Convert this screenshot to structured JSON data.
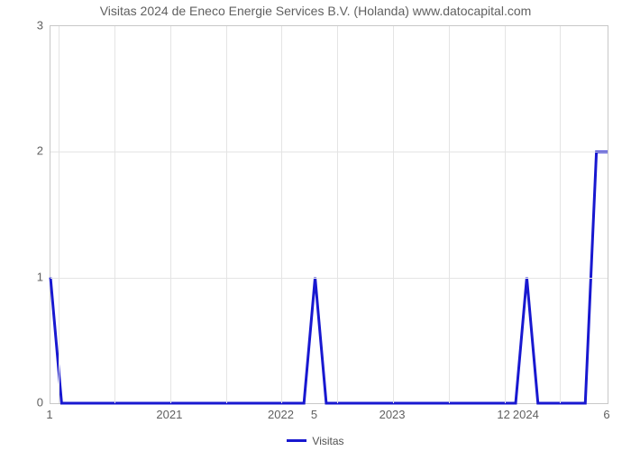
{
  "chart": {
    "type": "line",
    "title": "Visitas 2024 de Eneco Energie Services B.V. (Holanda) www.datocapital.com",
    "title_fontsize": 14,
    "title_color": "#606060",
    "background_color": "#ffffff",
    "plot_border_color": "#c8c8c8",
    "grid_color": "#e4e4e4",
    "axis_label_color": "#606060",
    "axis_label_fontsize": 13,
    "series": {
      "name": "Visitas",
      "color": "#1818d0",
      "line_width": 3,
      "x": [
        0.0,
        0.02,
        0.15,
        0.455,
        0.475,
        0.495,
        0.65,
        0.835,
        0.855,
        0.875,
        0.96,
        0.98,
        1.0
      ],
      "y": [
        1,
        0,
        0,
        0,
        1,
        0,
        0,
        0,
        1,
        0,
        0,
        2,
        2
      ]
    },
    "y_axis": {
      "min": 0,
      "max": 3,
      "ticks": [
        0,
        1,
        2,
        3
      ]
    },
    "x_axis": {
      "ticks": [
        {
          "pos": 0.0,
          "label": "1"
        },
        {
          "pos": 0.215,
          "label": "2021"
        },
        {
          "pos": 0.415,
          "label": "2022"
        },
        {
          "pos": 0.475,
          "label": "5"
        },
        {
          "pos": 0.615,
          "label": "2023"
        },
        {
          "pos": 0.815,
          "label": "12"
        },
        {
          "pos": 0.855,
          "label": "2024"
        },
        {
          "pos": 1.0,
          "label": "6"
        }
      ],
      "grid_positions": [
        0.015,
        0.115,
        0.215,
        0.315,
        0.415,
        0.515,
        0.615,
        0.715,
        0.815,
        0.915
      ]
    },
    "legend": {
      "label": "Visitas",
      "swatch_color": "#1818d0"
    }
  }
}
